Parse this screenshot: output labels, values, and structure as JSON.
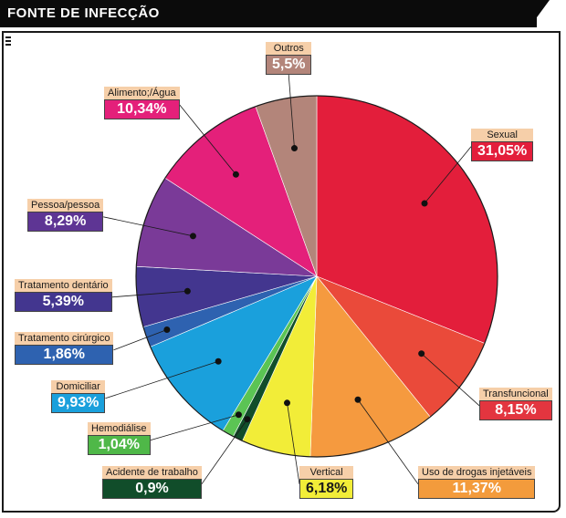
{
  "header": {
    "title": "FONTE DE INFECÇÃO"
  },
  "chart_data": {
    "type": "pie",
    "title": "FONTE DE INFECÇÃO",
    "slices": [
      {
        "label": "Sexual",
        "value": 31.05,
        "display": "31,05%",
        "color": "#e31e3b",
        "label_bg": "#e31e3b"
      },
      {
        "label": "Transfuncional",
        "value": 8.15,
        "display": "8,15%",
        "color": "#ea4a3a",
        "label_bg": "#e3353f"
      },
      {
        "label": "Uso de drogas injetáveis",
        "value": 11.37,
        "display": "11,37%",
        "color": "#f59a3f",
        "label_bg": "#f39b3c"
      },
      {
        "label": "Vertical",
        "value": 6.18,
        "display": "6,18%",
        "color": "#f2ed38",
        "label_bg": "#f2ed38"
      },
      {
        "label": "Acidente de trabalho",
        "value": 0.9,
        "display": "0,9%",
        "color": "#114d2a",
        "label_bg": "#114d2a"
      },
      {
        "label": "Hemodiálise",
        "value": 1.04,
        "display": "1,04%",
        "color": "#5bc454",
        "label_bg": "#4fb848"
      },
      {
        "label": "Domiciliar",
        "value": 9.93,
        "display": "9,93%",
        "color": "#1aa0dc",
        "label_bg": "#1aa0dc"
      },
      {
        "label": "Tratamento cirúrgico",
        "value": 1.86,
        "display": "1,86%",
        "color": "#2e62b0",
        "label_bg": "#2e62b0"
      },
      {
        "label": "Tratamento dentário",
        "value": 5.39,
        "display": "5,39%",
        "color": "#43368f",
        "label_bg": "#43368f"
      },
      {
        "label": "Pessoa/pessoa",
        "value": 8.29,
        "display": "8,29%",
        "color": "#7a3a98",
        "label_bg": "#5e3594"
      },
      {
        "label": "Alimento;/Água",
        "value": 10.34,
        "display": "10,34%",
        "color": "#e4207a",
        "label_bg": "#e4207a"
      },
      {
        "label": "Outros",
        "value": 5.5,
        "display": "5,5%",
        "color": "#b3857a",
        "label_bg": "#b3857a"
      }
    ],
    "start": "top",
    "direction": "clockwise",
    "label_name_bg": "#f6cfa9"
  }
}
